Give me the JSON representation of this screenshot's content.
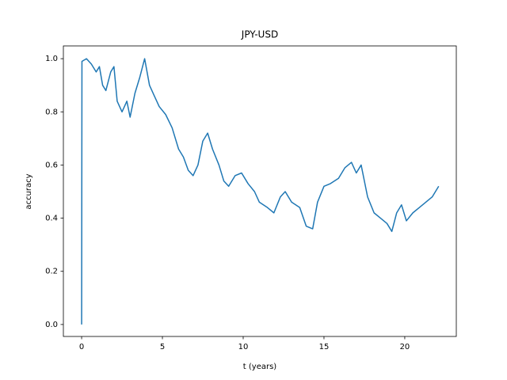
{
  "chart_data": {
    "type": "line",
    "title": "JPY-USD",
    "x_label": "t (years)",
    "y_label": "accuracy",
    "x": [
      0,
      0.02,
      0.3,
      0.6,
      0.9,
      1.1,
      1.3,
      1.5,
      1.8,
      2.0,
      2.2,
      2.5,
      2.8,
      3.0,
      3.3,
      3.6,
      3.9,
      4.2,
      4.5,
      4.8,
      5.2,
      5.6,
      6.0,
      6.3,
      6.6,
      6.9,
      7.2,
      7.5,
      7.8,
      8.1,
      8.5,
      8.8,
      9.1,
      9.5,
      9.9,
      10.3,
      10.7,
      11.0,
      11.5,
      11.9,
      12.3,
      12.6,
      13.0,
      13.5,
      13.9,
      14.3,
      14.6,
      15.0,
      15.4,
      15.9,
      16.3,
      16.7,
      17.0,
      17.3,
      17.7,
      18.1,
      18.5,
      18.9,
      19.2,
      19.5,
      19.8,
      20.1,
      20.5,
      20.9,
      21.3,
      21.7,
      22.1
    ],
    "series": [
      {
        "color": "#1f77b4",
        "values": [
          0.0,
          0.99,
          1.0,
          0.98,
          0.95,
          0.97,
          0.9,
          0.88,
          0.95,
          0.97,
          0.84,
          0.8,
          0.84,
          0.78,
          0.87,
          0.93,
          1.0,
          0.9,
          0.86,
          0.82,
          0.79,
          0.74,
          0.66,
          0.63,
          0.58,
          0.56,
          0.6,
          0.69,
          0.72,
          0.66,
          0.6,
          0.54,
          0.52,
          0.56,
          0.57,
          0.53,
          0.5,
          0.46,
          0.44,
          0.42,
          0.48,
          0.5,
          0.46,
          0.44,
          0.37,
          0.36,
          0.46,
          0.52,
          0.53,
          0.55,
          0.59,
          0.61,
          0.57,
          0.6,
          0.48,
          0.42,
          0.4,
          0.38,
          0.35,
          0.42,
          0.45,
          0.39,
          0.42,
          0.44,
          0.46,
          0.48,
          0.52
        ]
      }
    ],
    "xlim": [
      -1.13,
      23.19
    ],
    "ylim": [
      -0.045,
      1.048
    ],
    "xticks": [
      0,
      5,
      10,
      15,
      20
    ],
    "yticks": [
      {
        "value": 0,
        "label": "0.0"
      },
      0.2,
      0.4,
      0.6,
      0.8,
      {
        "value": 1,
        "label": "1.0"
      }
    ]
  }
}
